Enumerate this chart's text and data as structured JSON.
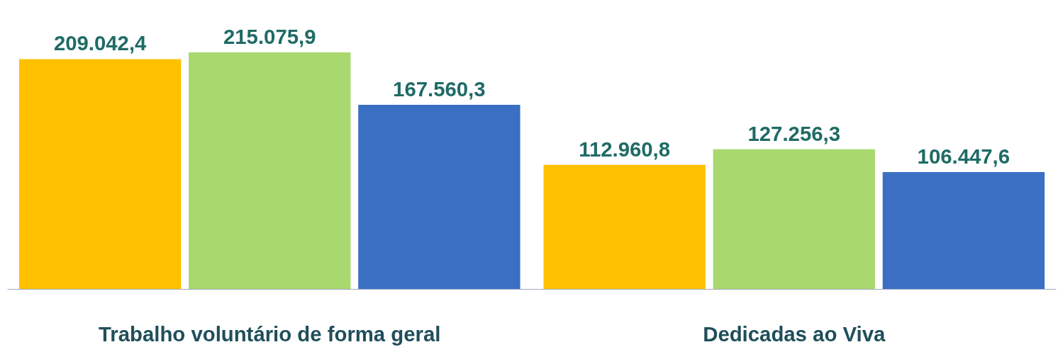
{
  "chart_data": {
    "type": "bar",
    "categories": [
      "Trabalho voluntário de forma geral",
      "Dedicadas ao Viva"
    ],
    "series": [
      {
        "color": "#ffc000",
        "values": [
          209042.4,
          112960.8
        ],
        "value_labels": [
          "209.042,4",
          "112.960,8"
        ]
      },
      {
        "color": "#a9d86e",
        "values": [
          215075.9,
          127256.3
        ],
        "value_labels": [
          "215.075,9",
          "127.256,3"
        ]
      },
      {
        "color": "#3a6fc4",
        "values": [
          167560.3,
          106447.6
        ],
        "value_labels": [
          "167.560,3",
          "106.447,6"
        ]
      }
    ],
    "grid": false,
    "tick_labels": "x"
  }
}
